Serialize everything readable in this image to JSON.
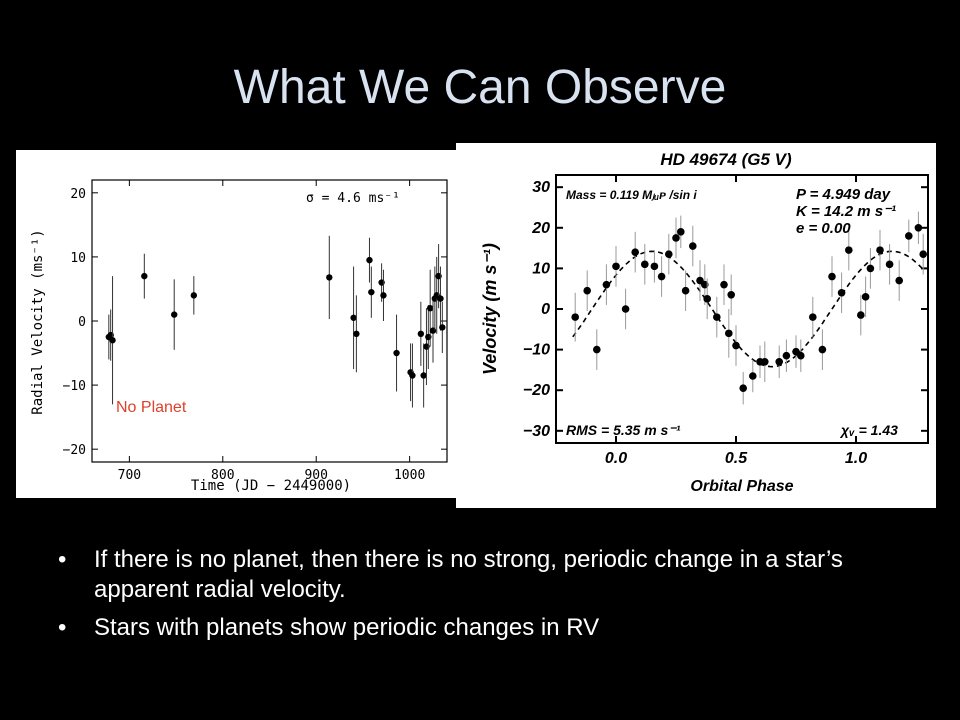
{
  "slide": {
    "title": "What We Can Observe",
    "bullets": [
      "If there is no planet, then there is no strong, periodic change in a star’s apparent radial velocity.",
      "Stars with planets show periodic changes in RV"
    ],
    "bullet_symbol": "•",
    "colors": {
      "background": "#000000",
      "title": "#d8e2f0",
      "annotation": "#e0402a"
    }
  },
  "chart_data": [
    {
      "type": "scatter",
      "title": "",
      "xlabel": "Time (JD − 2449000)",
      "ylabel": "Radial Velocity (ms⁻¹)",
      "xlim": [
        660,
        1040
      ],
      "ylim": [
        -22,
        22
      ],
      "xticks": [
        700,
        800,
        900,
        1000
      ],
      "yticks": [
        20,
        10,
        0,
        -10,
        -20
      ],
      "xtick_labels": [
        "700",
        "800",
        "900",
        "1000"
      ],
      "ytick_labels": [
        "20",
        "10",
        "0",
        "−10",
        "−20"
      ],
      "annotations": [
        "σ = 4.6 ms⁻¹"
      ],
      "overlay_label": "No Planet",
      "grid": false,
      "series": [
        {
          "error_bars": true,
          "points": [
            {
              "x": 678,
              "y": -2.5,
              "err": 3.5
            },
            {
              "x": 680,
              "y": -2.2,
              "err": 4.0
            },
            {
              "x": 682,
              "y": -3.0,
              "err": 10
            },
            {
              "x": 716,
              "y": 7.0,
              "err": 3.5
            },
            {
              "x": 748,
              "y": 1.0,
              "err": 5.5
            },
            {
              "x": 769,
              "y": 4.0,
              "err": 3.0
            },
            {
              "x": 914,
              "y": 6.8,
              "err": 6.5
            },
            {
              "x": 940,
              "y": 0.5,
              "err": 8
            },
            {
              "x": 943,
              "y": -2.0,
              "err": 6
            },
            {
              "x": 957,
              "y": 9.5,
              "err": 3.5
            },
            {
              "x": 959,
              "y": 4.5,
              "err": 4.0
            },
            {
              "x": 970,
              "y": 6.0,
              "err": 3.0
            },
            {
              "x": 972,
              "y": 4.0,
              "err": 4.0
            },
            {
              "x": 986,
              "y": -5.0,
              "err": 6
            },
            {
              "x": 1001,
              "y": -8.0,
              "err": 4.5
            },
            {
              "x": 1003,
              "y": -8.5,
              "err": 5
            },
            {
              "x": 1012,
              "y": -2.0,
              "err": 5
            },
            {
              "x": 1015,
              "y": -8.5,
              "err": 5
            },
            {
              "x": 1018,
              "y": -4.0,
              "err": 6
            },
            {
              "x": 1020,
              "y": -2.5,
              "err": 5
            },
            {
              "x": 1022,
              "y": 2.0,
              "err": 6
            },
            {
              "x": 1025,
              "y": -1.5,
              "err": 5
            },
            {
              "x": 1027,
              "y": 3.5,
              "err": 5
            },
            {
              "x": 1029,
              "y": 4.0,
              "err": 6
            },
            {
              "x": 1031,
              "y": 7.0,
              "err": 5
            },
            {
              "x": 1033,
              "y": 3.5,
              "err": 5
            },
            {
              "x": 1035,
              "y": -1.0,
              "err": 4
            }
          ]
        }
      ]
    },
    {
      "type": "scatter",
      "title": "HD 49674  (G5 V)",
      "xlabel": "Orbital Phase",
      "ylabel": "Velocity  (m s⁻¹)",
      "xlim": [
        -0.25,
        1.3
      ],
      "ylim": [
        -33,
        33
      ],
      "xticks": [
        0.0,
        0.5,
        1.0
      ],
      "yticks": [
        30,
        20,
        10,
        0,
        -10,
        -20,
        -30
      ],
      "xtick_labels": [
        "0.0",
        "0.5",
        "1.0"
      ],
      "ytick_labels": [
        "30",
        "20",
        "10",
        "0",
        "−10",
        "−20",
        "−30"
      ],
      "annotations": [
        "Mass = 0.119 Mⱼᵤᴘ /sin i",
        "P = 4.949 day",
        "K = 14.2 m s⁻¹",
        "e = 0.00",
        "RMS = 5.35 m s⁻¹",
        "χᵥ = 1.43"
      ],
      "grid": false,
      "model": {
        "name": "",
        "K": 14.2,
        "peak_phase": 0.15,
        "style": "dashed"
      },
      "series": [
        {
          "error_bars": true,
          "points": [
            {
              "x": -0.17,
              "y": -2,
              "err": 6
            },
            {
              "x": -0.12,
              "y": 4.5,
              "err": 5
            },
            {
              "x": -0.08,
              "y": -10,
              "err": 5
            },
            {
              "x": -0.04,
              "y": 6,
              "err": 5
            },
            {
              "x": 0.0,
              "y": 10.5,
              "err": 5
            },
            {
              "x": 0.04,
              "y": 0,
              "err": 5
            },
            {
              "x": 0.08,
              "y": 14,
              "err": 5
            },
            {
              "x": 0.12,
              "y": 11,
              "err": 5
            },
            {
              "x": 0.16,
              "y": 10.5,
              "err": 4
            },
            {
              "x": 0.19,
              "y": 8,
              "err": 5
            },
            {
              "x": 0.22,
              "y": 13.5,
              "err": 5
            },
            {
              "x": 0.25,
              "y": 17.5,
              "err": 5
            },
            {
              "x": 0.27,
              "y": 19,
              "err": 4
            },
            {
              "x": 0.29,
              "y": 4.5,
              "err": 5
            },
            {
              "x": 0.32,
              "y": 15.5,
              "err": 5
            },
            {
              "x": 0.35,
              "y": 7,
              "err": 5
            },
            {
              "x": 0.37,
              "y": 6,
              "err": 5
            },
            {
              "x": 0.38,
              "y": 2.5,
              "err": 5
            },
            {
              "x": 0.42,
              "y": -2,
              "err": 5
            },
            {
              "x": 0.45,
              "y": 6,
              "err": 5
            },
            {
              "x": 0.47,
              "y": -6,
              "err": 6
            },
            {
              "x": 0.48,
              "y": 3.5,
              "err": 5
            },
            {
              "x": 0.5,
              "y": -9,
              "err": 5
            },
            {
              "x": 0.53,
              "y": -19.5,
              "err": 4
            },
            {
              "x": 0.57,
              "y": -16.5,
              "err": 4
            },
            {
              "x": 0.6,
              "y": -13,
              "err": 4
            },
            {
              "x": 0.62,
              "y": -13,
              "err": 5
            },
            {
              "x": 0.68,
              "y": -13,
              "err": 4
            },
            {
              "x": 0.71,
              "y": -11.5,
              "err": 4
            },
            {
              "x": 0.75,
              "y": -10.5,
              "err": 4
            },
            {
              "x": 0.77,
              "y": -11.5,
              "err": 4
            },
            {
              "x": 0.82,
              "y": -2,
              "err": 5
            },
            {
              "x": 0.86,
              "y": -10,
              "err": 5
            },
            {
              "x": 0.9,
              "y": 8,
              "err": 5
            },
            {
              "x": 0.94,
              "y": 4,
              "err": 5
            },
            {
              "x": 0.97,
              "y": 14.5,
              "err": 5
            },
            {
              "x": 1.02,
              "y": -1.5,
              "err": 5
            },
            {
              "x": 1.04,
              "y": 3,
              "err": 5
            },
            {
              "x": 1.06,
              "y": 10,
              "err": 5
            },
            {
              "x": 1.1,
              "y": 14.5,
              "err": 5
            },
            {
              "x": 1.14,
              "y": 11,
              "err": 5
            },
            {
              "x": 1.18,
              "y": 7,
              "err": 5
            },
            {
              "x": 1.22,
              "y": 18,
              "err": 4
            },
            {
              "x": 1.26,
              "y": 20,
              "err": 4
            },
            {
              "x": 1.28,
              "y": 13.5,
              "err": 5
            }
          ]
        }
      ]
    }
  ]
}
